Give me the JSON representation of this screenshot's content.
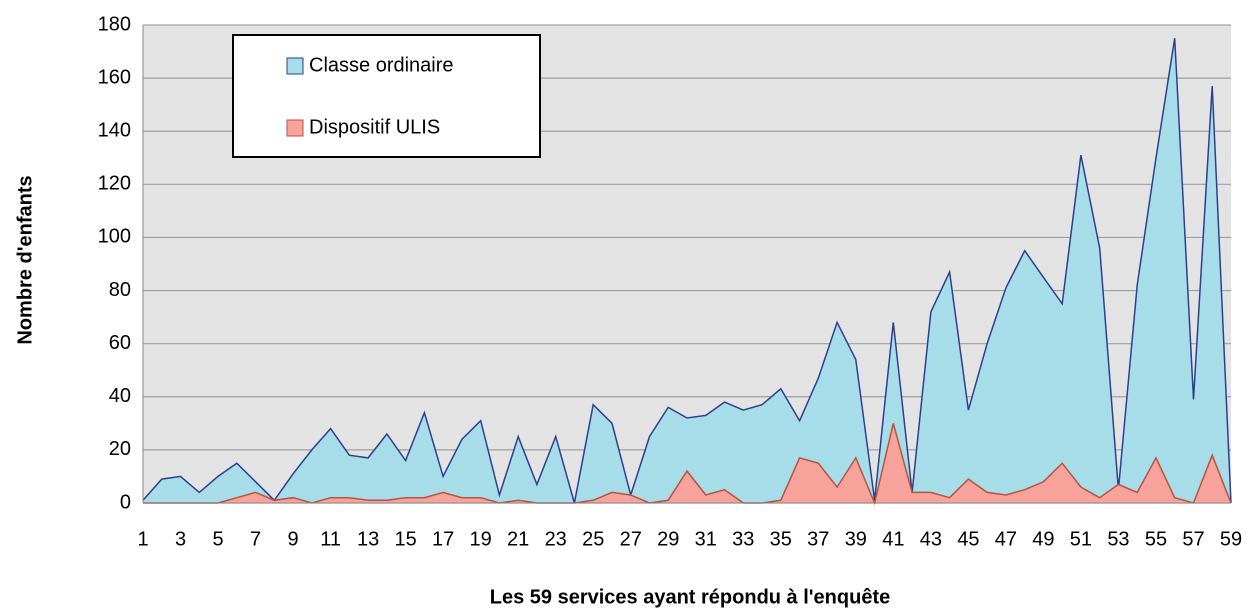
{
  "chart_data": {
    "type": "area",
    "xlabel": "Les 59 services ayant répondu à l'enquête",
    "ylabel": "Nombre d'enfants",
    "categories": [
      1,
      null,
      3,
      null,
      5,
      null,
      7,
      null,
      9,
      null,
      11,
      null,
      13,
      null,
      15,
      null,
      17,
      null,
      19,
      null,
      21,
      null,
      23,
      null,
      25,
      null,
      27,
      null,
      29,
      null,
      31,
      null,
      33,
      null,
      35,
      null,
      37,
      null,
      39,
      null,
      41,
      null,
      43,
      null,
      45,
      null,
      47,
      null,
      49,
      null,
      51,
      null,
      53,
      null,
      55,
      null,
      57,
      null,
      59
    ],
    "series": [
      {
        "name": "Classe ordinaire",
        "color": "#a6dde9",
        "line_color": "#2e3f8f",
        "values": [
          1,
          9,
          10,
          4,
          10,
          15,
          8,
          1,
          11,
          20,
          28,
          18,
          17,
          26,
          16,
          34,
          10,
          24,
          31,
          3,
          25,
          7,
          25,
          0,
          37,
          30,
          3,
          25,
          36,
          32,
          33,
          38,
          35,
          37,
          43,
          31,
          47,
          68,
          54,
          1,
          68,
          4,
          72,
          87,
          35,
          60,
          81,
          95,
          85,
          75,
          131,
          96,
          5,
          82,
          130,
          175,
          39,
          157,
          0
        ]
      },
      {
        "name": "Dispositif ULIS",
        "color": "#f7a29b",
        "line_color": "#b4553c",
        "values": [
          0,
          0,
          0,
          0,
          0,
          2,
          4,
          1,
          2,
          0,
          2,
          2,
          1,
          1,
          2,
          2,
          4,
          2,
          2,
          0,
          1,
          0,
          0,
          0,
          1,
          4,
          3,
          0,
          1,
          12,
          3,
          5,
          0,
          0,
          1,
          17,
          15,
          6,
          17,
          0,
          30,
          4,
          4,
          2,
          9,
          4,
          3,
          5,
          8,
          15,
          6,
          2,
          7,
          4,
          17,
          2,
          0,
          18,
          0
        ]
      }
    ],
    "ylim": [
      0,
      180
    ],
    "yticks": [
      0,
      20,
      40,
      60,
      80,
      100,
      120,
      140,
      160,
      180
    ],
    "grid": true,
    "legend": "upper left"
  }
}
